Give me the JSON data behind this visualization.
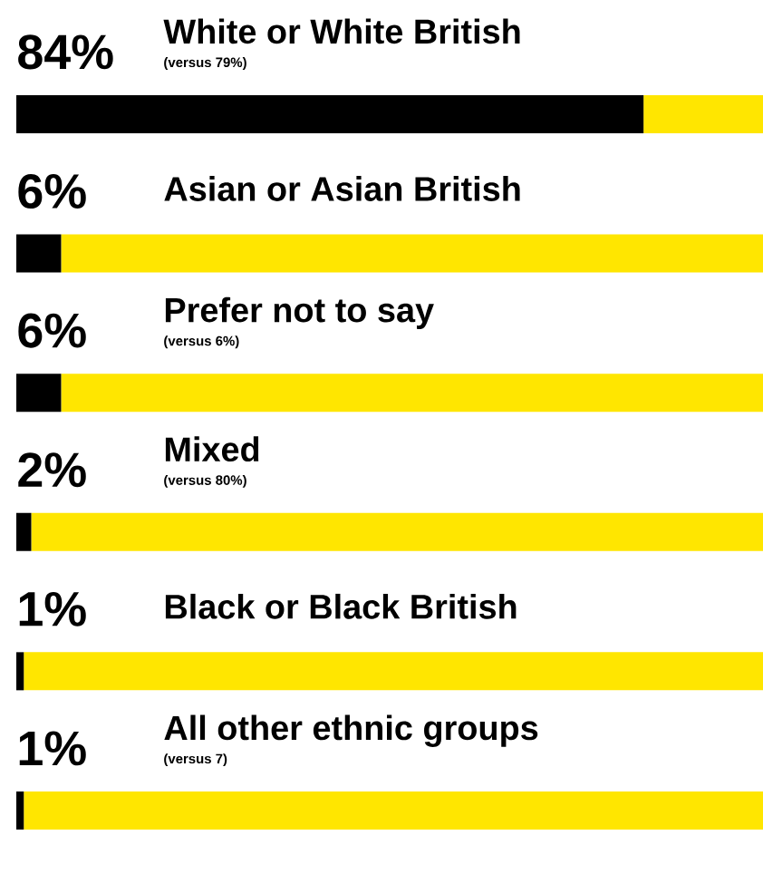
{
  "chart_data": {
    "type": "bar",
    "orientation": "horizontal",
    "stacked": true,
    "categories": [
      "White or White British",
      "Asian or Asian British",
      "Prefer not to say",
      "Mixed",
      "Black or Black British",
      "All other ethnic groups"
    ],
    "series": [
      {
        "color": "#000000",
        "values": [
          84,
          6,
          6,
          2,
          1,
          1
        ],
        "value_labels": [
          "84%",
          "6%",
          "6%",
          "2%",
          "1%",
          "1%"
        ]
      },
      {
        "color": "#ffe600",
        "values": [
          16,
          94,
          94,
          98,
          99,
          99
        ]
      }
    ],
    "annotations": [
      {
        "text": "(versus 79%)",
        "y": "White or White British"
      },
      {
        "text": "(versus 6%)",
        "y": "Prefer not to say"
      },
      {
        "text": "(versus 80%)",
        "y": "Mixed"
      },
      {
        "text": "(versus 7)",
        "y": "All other ethnic groups"
      }
    ]
  }
}
